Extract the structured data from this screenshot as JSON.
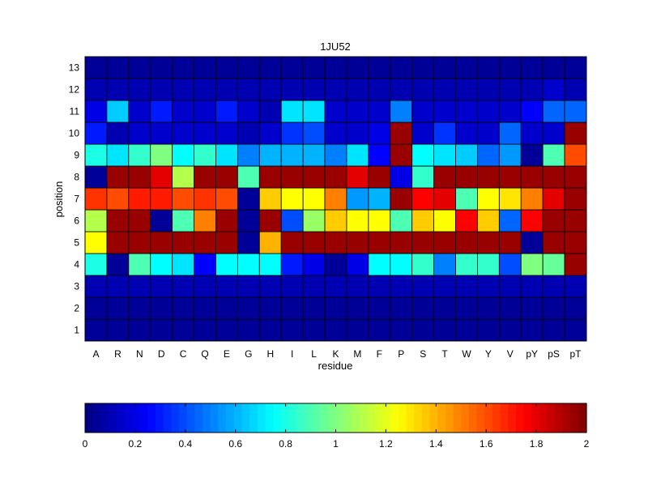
{
  "chart_data": {
    "type": "heatmap",
    "title": "1JU52",
    "xlabel": "residue",
    "ylabel": "position",
    "x": [
      "A",
      "R",
      "N",
      "D",
      "C",
      "Q",
      "E",
      "G",
      "H",
      "I",
      "L",
      "K",
      "M",
      "F",
      "P",
      "S",
      "T",
      "W",
      "Y",
      "V",
      "pY",
      "pS",
      "pT"
    ],
    "y": [
      "1",
      "2",
      "3",
      "4",
      "5",
      "6",
      "7",
      "8",
      "9",
      "10",
      "11",
      "12",
      "13"
    ],
    "values": [
      [
        0.05,
        0.05,
        0.05,
        0.05,
        0.05,
        0.05,
        0.05,
        0.05,
        0.05,
        0.05,
        0.05,
        0.05,
        0.05,
        0.05,
        0.05,
        0.05,
        0.05,
        0.05,
        0.05,
        0.05,
        0.05,
        0.05,
        0.05
      ],
      [
        0.05,
        0.05,
        0.05,
        0.05,
        0.05,
        0.05,
        0.05,
        0.05,
        0.05,
        0.05,
        0.05,
        0.05,
        0.05,
        0.05,
        0.05,
        0.05,
        0.05,
        0.05,
        0.05,
        0.05,
        0.05,
        0.05,
        0.05
      ],
      [
        0.1,
        0.1,
        0.1,
        0.1,
        0.1,
        0.1,
        0.1,
        0.1,
        0.1,
        0.1,
        0.1,
        0.1,
        0.1,
        0.1,
        0.1,
        0.1,
        0.1,
        0.1,
        0.1,
        0.1,
        0.1,
        0.1,
        0.1
      ],
      [
        0.8,
        0.05,
        0.9,
        0.75,
        0.7,
        0.25,
        0.75,
        0.75,
        0.75,
        0.3,
        0.2,
        0.05,
        0.2,
        0.75,
        0.75,
        0.85,
        0.5,
        0.85,
        0.85,
        0.4,
        1.0,
        0.95,
        1.95
      ],
      [
        1.25,
        1.95,
        1.95,
        1.95,
        1.95,
        1.95,
        1.95,
        0.05,
        1.4,
        1.95,
        1.95,
        1.95,
        1.95,
        1.95,
        1.95,
        1.95,
        1.95,
        1.95,
        1.95,
        1.95,
        0.05,
        1.95,
        1.95
      ],
      [
        1.1,
        1.95,
        1.95,
        0.05,
        0.9,
        1.5,
        1.95,
        0.05,
        1.95,
        0.4,
        1.05,
        1.35,
        1.25,
        1.25,
        0.9,
        1.35,
        1.25,
        1.75,
        1.35,
        0.45,
        1.75,
        1.95,
        1.95
      ],
      [
        1.65,
        1.6,
        1.7,
        1.7,
        1.6,
        1.65,
        1.6,
        0.05,
        1.35,
        1.25,
        1.25,
        1.5,
        0.55,
        0.6,
        1.95,
        1.75,
        1.8,
        0.9,
        1.25,
        1.3,
        1.5,
        1.8,
        1.95
      ],
      [
        0.05,
        1.95,
        1.95,
        1.8,
        1.1,
        1.95,
        1.95,
        0.9,
        1.95,
        1.95,
        1.95,
        1.95,
        1.8,
        1.95,
        0.2,
        0.85,
        1.95,
        1.95,
        1.95,
        1.95,
        1.95,
        1.95,
        1.95
      ],
      [
        0.8,
        0.7,
        0.85,
        1.0,
        0.75,
        0.85,
        0.7,
        0.5,
        0.6,
        0.6,
        0.6,
        0.5,
        0.7,
        0.25,
        1.95,
        0.75,
        0.7,
        0.65,
        0.45,
        0.55,
        0.05,
        0.9,
        1.6
      ],
      [
        0.3,
        0.1,
        0.15,
        0.15,
        0.15,
        0.15,
        0.15,
        0.1,
        0.15,
        0.35,
        0.4,
        0.15,
        0.15,
        0.2,
        1.95,
        0.15,
        0.35,
        0.15,
        0.15,
        0.45,
        0.15,
        0.15,
        1.95
      ],
      [
        0.2,
        0.65,
        0.15,
        0.3,
        0.15,
        0.15,
        0.3,
        0.15,
        0.1,
        0.7,
        0.7,
        0.15,
        0.15,
        0.15,
        0.5,
        0.15,
        0.15,
        0.15,
        0.15,
        0.15,
        0.25,
        0.45,
        0.45
      ],
      [
        0.1,
        0.1,
        0.1,
        0.1,
        0.1,
        0.1,
        0.1,
        0.1,
        0.1,
        0.1,
        0.1,
        0.1,
        0.1,
        0.1,
        0.1,
        0.1,
        0.1,
        0.1,
        0.1,
        0.1,
        0.1,
        0.15,
        0.1
      ],
      [
        0.05,
        0.05,
        0.05,
        0.05,
        0.05,
        0.05,
        0.05,
        0.05,
        0.05,
        0.05,
        0.05,
        0.05,
        0.05,
        0.05,
        0.05,
        0.05,
        0.05,
        0.05,
        0.05,
        0.05,
        0.05,
        0.05,
        0.05
      ]
    ],
    "colorbar": {
      "range": [
        0,
        2
      ],
      "ticks": [
        "0",
        "0.2",
        "0.4",
        "0.6",
        "0.8",
        "1",
        "1.2",
        "1.4",
        "1.6",
        "1.8",
        "2"
      ],
      "colormap": "jet",
      "placement": "bottom"
    },
    "grid": true
  }
}
